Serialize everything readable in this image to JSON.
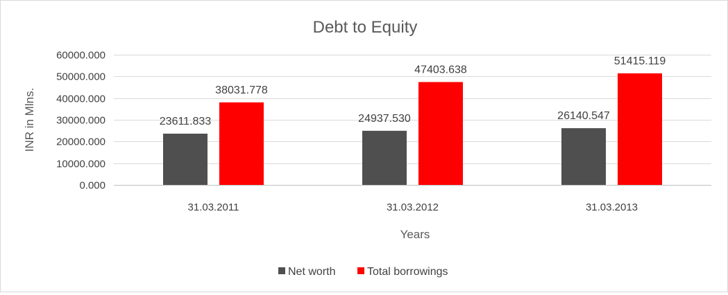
{
  "chart_data": {
    "type": "bar",
    "title": "Debt to Equity",
    "xlabel": "Years",
    "ylabel": "INR in Mlns.",
    "categories": [
      "31.03.2011",
      "31.03.2012",
      "31.03.2013"
    ],
    "series": [
      {
        "name": "Net worth",
        "color": "#4f4f4f",
        "values": [
          23611.833,
          24937.53,
          26140.547
        ],
        "labels": [
          "23611.833",
          "24937.530",
          "26140.547"
        ]
      },
      {
        "name": "Total borrowings",
        "color": "#ff0000",
        "values": [
          38031.778,
          47403.638,
          51415.119
        ],
        "labels": [
          "38031.778",
          "47403.638",
          "51415.119"
        ]
      }
    ],
    "ylim": [
      0,
      60000
    ],
    "yticks": [
      0,
      10000,
      20000,
      30000,
      40000,
      50000,
      60000
    ],
    "ytick_labels": [
      "0.000",
      "10000.000",
      "20000.000",
      "30000.000",
      "40000.000",
      "50000.000",
      "60000.000"
    ],
    "grid": true,
    "legend_position": "bottom"
  }
}
